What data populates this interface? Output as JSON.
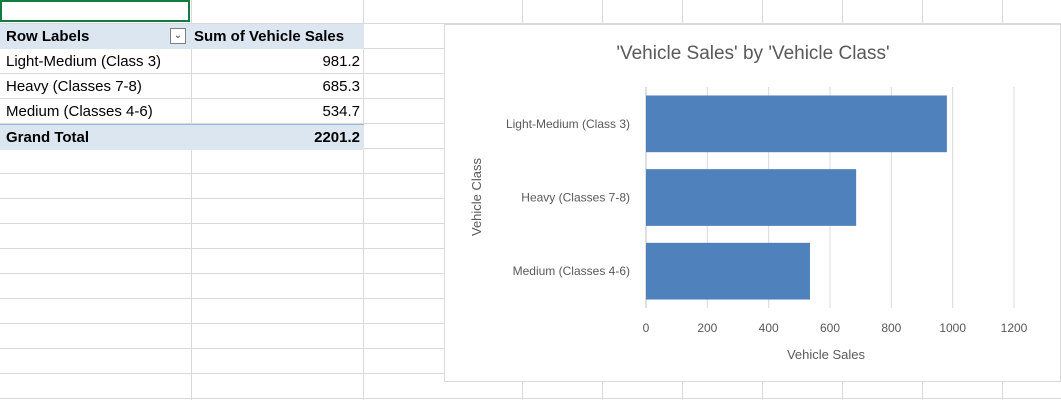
{
  "pivot": {
    "header": {
      "row_labels": "Row Labels",
      "value_header": "Sum of Vehicle Sales"
    },
    "rows": [
      {
        "label": "Light-Medium (Class 3)",
        "value": "981.2"
      },
      {
        "label": "Heavy (Classes 7-8)",
        "value": "685.3"
      },
      {
        "label": "Medium (Classes 4-6)",
        "value": "534.7"
      }
    ],
    "total": {
      "label": "Grand Total",
      "value": "2201.2"
    },
    "filter_icon": "chevron-down-icon"
  },
  "colors": {
    "bar": "#4f81bd",
    "header_fill": "#dce6f1",
    "active_cell_border": "#107c41"
  },
  "chart_data": {
    "type": "bar",
    "orientation": "horizontal",
    "title": "'Vehicle Sales' by 'Vehicle Class'",
    "xlabel": "Vehicle Sales",
    "ylabel": "Vehicle Class",
    "categories": [
      "Light-Medium (Class 3)",
      "Heavy (Classes 7-8)",
      "Medium (Classes 4-6)"
    ],
    "values": [
      981.2,
      685.3,
      534.7
    ],
    "xlim": [
      0,
      1200
    ],
    "xticks": [
      0,
      200,
      400,
      600,
      800,
      1000,
      1200
    ],
    "grid": true,
    "legend": "none"
  }
}
